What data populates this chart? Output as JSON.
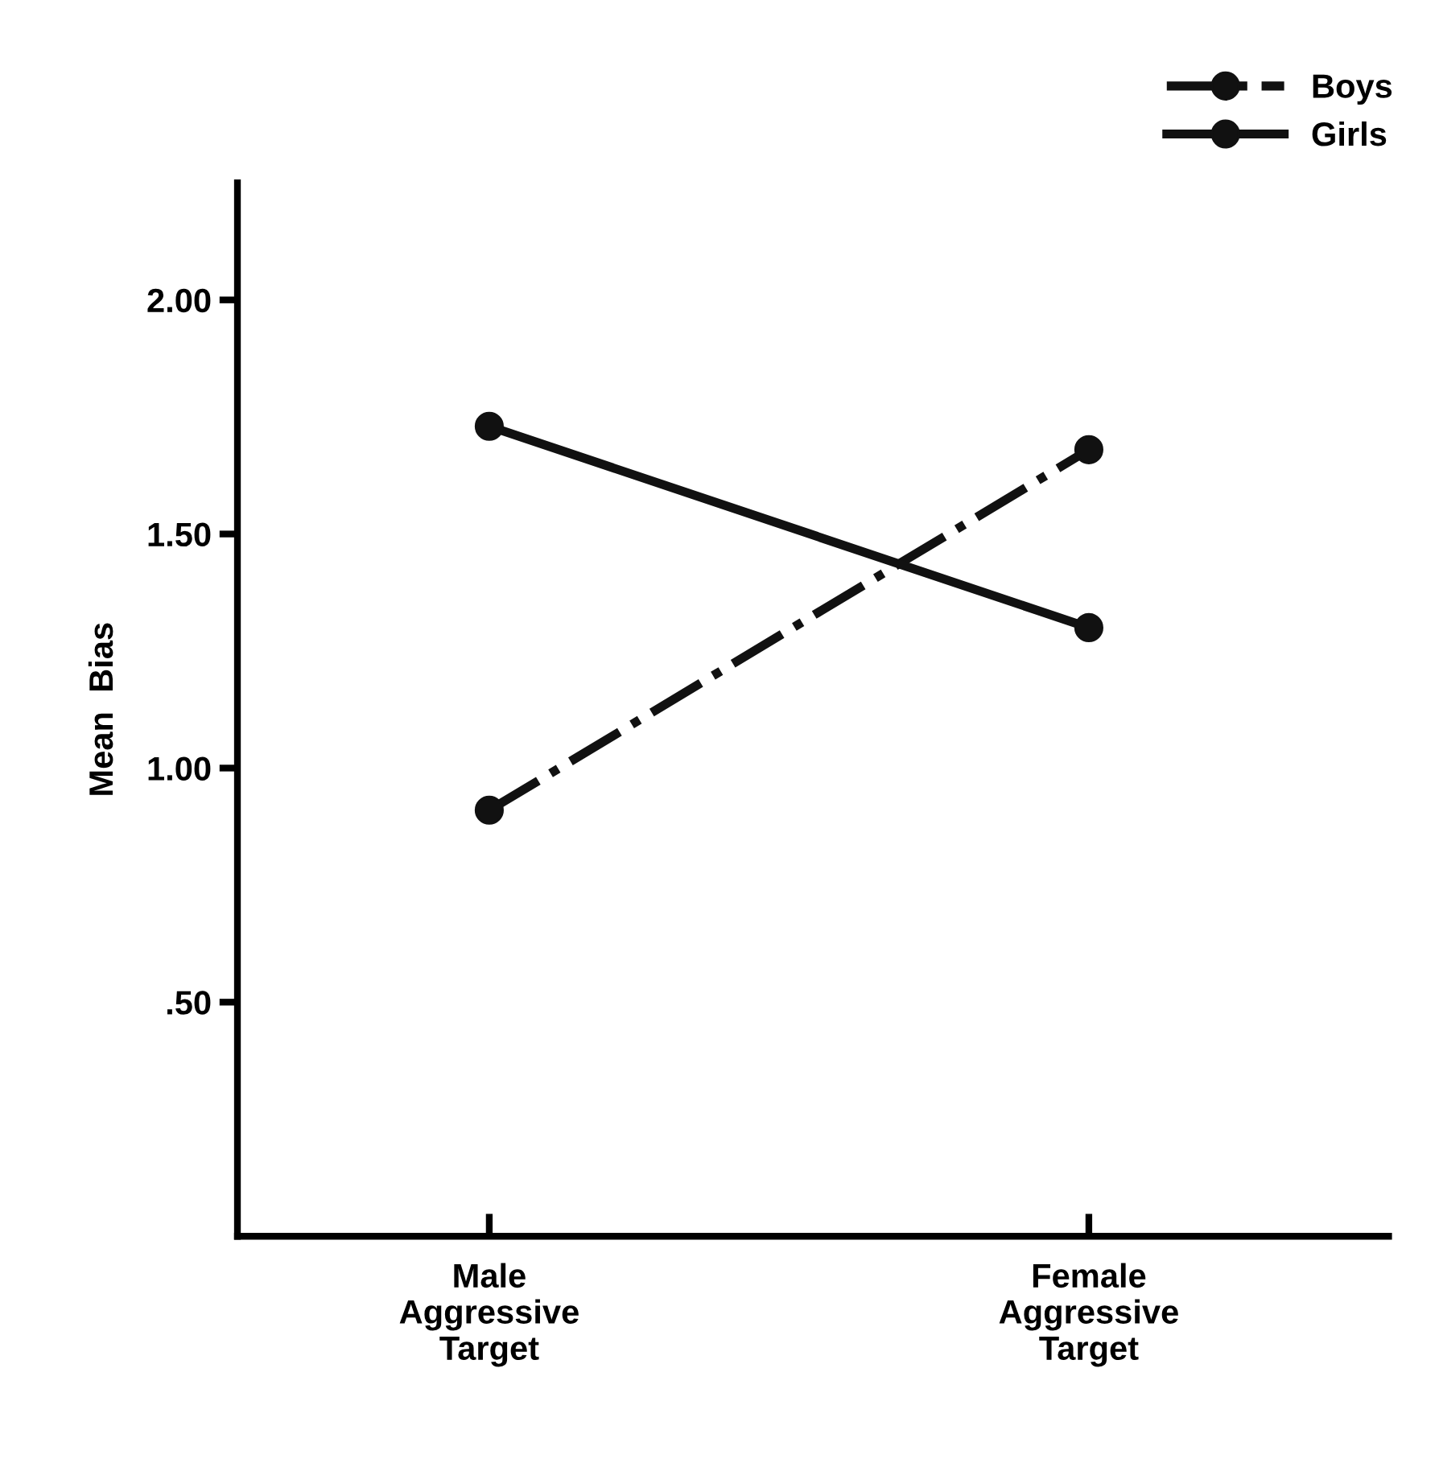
{
  "chart_data": {
    "type": "line",
    "ylabel": "Mean  Bias",
    "categories": [
      "Male\nAggressive\nTarget",
      "Female\nAggressive\nTarget"
    ],
    "series": [
      {
        "name": "Boys",
        "color": "#111111",
        "values": [
          0.91,
          1.68
        ],
        "line_style": "dashdot"
      },
      {
        "name": "Girls",
        "color": "#111111",
        "values": [
          1.73,
          1.3
        ],
        "line_style": "solid"
      }
    ],
    "ylim": [
      0,
      2.25
    ],
    "yticks": [
      {
        "value": 0.5,
        "label": ".50"
      },
      {
        "value": 1.0,
        "label": "1.00"
      },
      {
        "value": 1.5,
        "label": "1.50"
      },
      {
        "value": 2.0,
        "label": "2.00"
      }
    ],
    "marker": "circle",
    "grid": false,
    "legend": "top right"
  }
}
